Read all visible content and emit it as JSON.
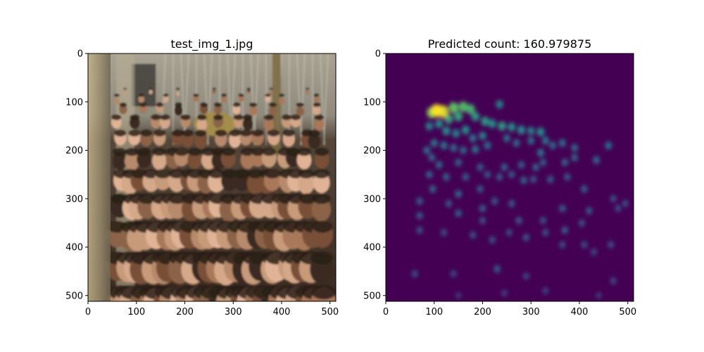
{
  "chart_data": [
    {
      "type": "image",
      "title": "test_img_1.jpg",
      "xticks": [
        "0",
        "100",
        "200",
        "300",
        "400",
        "500"
      ],
      "yticks": [
        "0",
        "100",
        "200",
        "300",
        "400",
        "500"
      ],
      "xlim": [
        0,
        512
      ],
      "ylim": [
        512,
        0
      ],
      "content": "crowd photograph"
    },
    {
      "type": "heatmap",
      "title": "Predicted count: 160.979875",
      "xticks": [
        "0",
        "100",
        "200",
        "300",
        "400",
        "500"
      ],
      "yticks": [
        "0",
        "100",
        "200",
        "300",
        "400",
        "500"
      ],
      "xlim": [
        0,
        512
      ],
      "ylim": [
        512,
        0
      ],
      "colormap": "viridis",
      "background_color": "#440154",
      "hot_color": "#fde725",
      "blobs": [
        {
          "x": 105,
          "y": 118,
          "v": 1.0
        },
        {
          "x": 118,
          "y": 120,
          "v": 0.95
        },
        {
          "x": 95,
          "y": 122,
          "v": 0.8
        },
        {
          "x": 140,
          "y": 112,
          "v": 0.75
        },
        {
          "x": 160,
          "y": 110,
          "v": 0.7
        },
        {
          "x": 175,
          "y": 115,
          "v": 0.65
        },
        {
          "x": 130,
          "y": 135,
          "v": 0.6
        },
        {
          "x": 150,
          "y": 130,
          "v": 0.6
        },
        {
          "x": 185,
          "y": 130,
          "v": 0.55
        },
        {
          "x": 205,
          "y": 140,
          "v": 0.55
        },
        {
          "x": 220,
          "y": 145,
          "v": 0.5
        },
        {
          "x": 240,
          "y": 150,
          "v": 0.55
        },
        {
          "x": 260,
          "y": 152,
          "v": 0.5
        },
        {
          "x": 280,
          "y": 158,
          "v": 0.5
        },
        {
          "x": 300,
          "y": 160,
          "v": 0.45
        },
        {
          "x": 320,
          "y": 162,
          "v": 0.5
        },
        {
          "x": 235,
          "y": 105,
          "v": 0.45
        },
        {
          "x": 110,
          "y": 145,
          "v": 0.5
        },
        {
          "x": 90,
          "y": 150,
          "v": 0.45
        },
        {
          "x": 125,
          "y": 160,
          "v": 0.5
        },
        {
          "x": 145,
          "y": 165,
          "v": 0.45
        },
        {
          "x": 165,
          "y": 158,
          "v": 0.5
        },
        {
          "x": 180,
          "y": 175,
          "v": 0.4
        },
        {
          "x": 200,
          "y": 170,
          "v": 0.45
        },
        {
          "x": 100,
          "y": 185,
          "v": 0.4
        },
        {
          "x": 120,
          "y": 190,
          "v": 0.4
        },
        {
          "x": 140,
          "y": 195,
          "v": 0.38
        },
        {
          "x": 160,
          "y": 200,
          "v": 0.36
        },
        {
          "x": 185,
          "y": 198,
          "v": 0.4
        },
        {
          "x": 210,
          "y": 190,
          "v": 0.38
        },
        {
          "x": 250,
          "y": 175,
          "v": 0.38
        },
        {
          "x": 270,
          "y": 185,
          "v": 0.36
        },
        {
          "x": 300,
          "y": 180,
          "v": 0.38
        },
        {
          "x": 330,
          "y": 180,
          "v": 0.4
        },
        {
          "x": 345,
          "y": 190,
          "v": 0.36
        },
        {
          "x": 365,
          "y": 185,
          "v": 0.38
        },
        {
          "x": 85,
          "y": 200,
          "v": 0.38
        },
        {
          "x": 95,
          "y": 215,
          "v": 0.35
        },
        {
          "x": 320,
          "y": 205,
          "v": 0.4
        },
        {
          "x": 390,
          "y": 195,
          "v": 0.36
        },
        {
          "x": 460,
          "y": 190,
          "v": 0.38
        },
        {
          "x": 110,
          "y": 230,
          "v": 0.36
        },
        {
          "x": 150,
          "y": 225,
          "v": 0.34
        },
        {
          "x": 195,
          "y": 235,
          "v": 0.32
        },
        {
          "x": 245,
          "y": 235,
          "v": 0.34
        },
        {
          "x": 280,
          "y": 230,
          "v": 0.32
        },
        {
          "x": 310,
          "y": 235,
          "v": 0.34
        },
        {
          "x": 325,
          "y": 225,
          "v": 0.32
        },
        {
          "x": 370,
          "y": 225,
          "v": 0.34
        },
        {
          "x": 390,
          "y": 215,
          "v": 0.34
        },
        {
          "x": 435,
          "y": 220,
          "v": 0.36
        },
        {
          "x": 90,
          "y": 250,
          "v": 0.34
        },
        {
          "x": 125,
          "y": 255,
          "v": 0.34
        },
        {
          "x": 165,
          "y": 255,
          "v": 0.32
        },
        {
          "x": 210,
          "y": 250,
          "v": 0.3
        },
        {
          "x": 235,
          "y": 255,
          "v": 0.3
        },
        {
          "x": 260,
          "y": 250,
          "v": 0.3
        },
        {
          "x": 285,
          "y": 262,
          "v": 0.34
        },
        {
          "x": 305,
          "y": 260,
          "v": 0.3
        },
        {
          "x": 340,
          "y": 260,
          "v": 0.32
        },
        {
          "x": 375,
          "y": 255,
          "v": 0.3
        },
        {
          "x": 97,
          "y": 280,
          "v": 0.34
        },
        {
          "x": 150,
          "y": 290,
          "v": 0.35
        },
        {
          "x": 195,
          "y": 280,
          "v": 0.3
        },
        {
          "x": 410,
          "y": 280,
          "v": 0.32
        },
        {
          "x": 70,
          "y": 305,
          "v": 0.32
        },
        {
          "x": 130,
          "y": 310,
          "v": 0.3
        },
        {
          "x": 200,
          "y": 320,
          "v": 0.32
        },
        {
          "x": 225,
          "y": 305,
          "v": 0.3
        },
        {
          "x": 260,
          "y": 310,
          "v": 0.3
        },
        {
          "x": 365,
          "y": 320,
          "v": 0.32
        },
        {
          "x": 420,
          "y": 325,
          "v": 0.3
        },
        {
          "x": 470,
          "y": 300,
          "v": 0.28
        },
        {
          "x": 495,
          "y": 310,
          "v": 0.26
        },
        {
          "x": 70,
          "y": 335,
          "v": 0.3
        },
        {
          "x": 150,
          "y": 330,
          "v": 0.32
        },
        {
          "x": 200,
          "y": 345,
          "v": 0.28
        },
        {
          "x": 275,
          "y": 345,
          "v": 0.3
        },
        {
          "x": 325,
          "y": 345,
          "v": 0.28
        },
        {
          "x": 370,
          "y": 365,
          "v": 0.32
        },
        {
          "x": 405,
          "y": 350,
          "v": 0.28
        },
        {
          "x": 480,
          "y": 320,
          "v": 0.26
        },
        {
          "x": 70,
          "y": 365,
          "v": 0.28
        },
        {
          "x": 120,
          "y": 370,
          "v": 0.26
        },
        {
          "x": 180,
          "y": 375,
          "v": 0.28
        },
        {
          "x": 220,
          "y": 385,
          "v": 0.28
        },
        {
          "x": 255,
          "y": 370,
          "v": 0.26
        },
        {
          "x": 290,
          "y": 380,
          "v": 0.3
        },
        {
          "x": 330,
          "y": 370,
          "v": 0.28
        },
        {
          "x": 365,
          "y": 395,
          "v": 0.26
        },
        {
          "x": 410,
          "y": 395,
          "v": 0.26
        },
        {
          "x": 430,
          "y": 410,
          "v": 0.24
        },
        {
          "x": 465,
          "y": 395,
          "v": 0.26
        },
        {
          "x": 230,
          "y": 445,
          "v": 0.32
        },
        {
          "x": 60,
          "y": 455,
          "v": 0.26
        },
        {
          "x": 140,
          "y": 455,
          "v": 0.24
        },
        {
          "x": 290,
          "y": 460,
          "v": 0.24
        },
        {
          "x": 470,
          "y": 470,
          "v": 0.24
        },
        {
          "x": 245,
          "y": 495,
          "v": 0.22
        },
        {
          "x": 330,
          "y": 490,
          "v": 0.22
        },
        {
          "x": 150,
          "y": 500,
          "v": 0.2
        },
        {
          "x": 440,
          "y": 500,
          "v": 0.2
        }
      ]
    }
  ]
}
